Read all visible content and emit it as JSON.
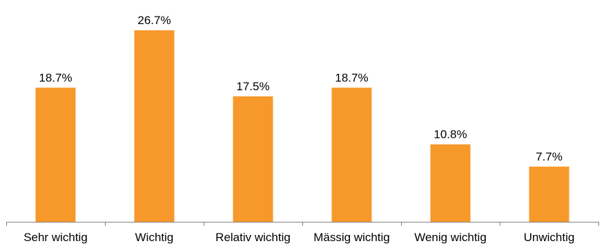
{
  "chart_data": {
    "type": "bar",
    "title": "",
    "xlabel": "",
    "ylabel": "",
    "categories": [
      "Sehr wichtig",
      "Wichtig",
      "Relativ wichtig",
      "Mässig wichtig",
      "Wenig wichtig",
      "Unwichtig"
    ],
    "values": [
      18.7,
      26.7,
      17.5,
      18.7,
      10.8,
      7.7
    ],
    "data_labels": [
      "18.7%",
      "26.7%",
      "17.5%",
      "18.7%",
      "10.8%",
      "7.7%"
    ],
    "unit": "%",
    "ylim": [
      0,
      26.7
    ],
    "grid": false,
    "legend": "none",
    "colors": {
      "bar": "#F7982A",
      "axis": "#808080",
      "text": "#000000"
    }
  }
}
